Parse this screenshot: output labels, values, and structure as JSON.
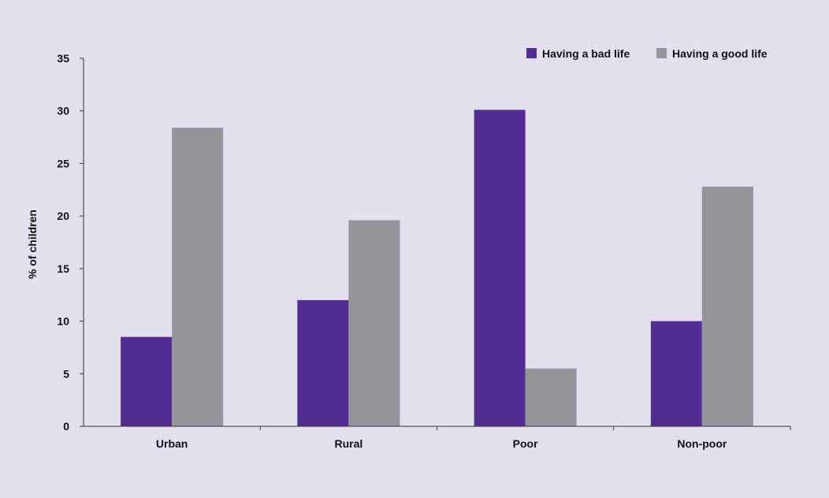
{
  "chart_data": {
    "type": "bar",
    "categories": [
      "Urban",
      "Rural",
      "Poor",
      "Non-poor"
    ],
    "series": [
      {
        "name": "Having a bad life",
        "color": "#512d91",
        "values": [
          8.5,
          12.0,
          30.1,
          10.0
        ]
      },
      {
        "name": "Having a good life",
        "color": "#939598",
        "values": [
          28.4,
          19.6,
          5.5,
          22.8
        ]
      }
    ],
    "title": "",
    "xlabel": "",
    "ylabel": "% of children",
    "ylim": [
      0,
      35
    ],
    "yticks": [
      0,
      5,
      10,
      15,
      20,
      25,
      30,
      35
    ],
    "grid": false,
    "legend_position": "top-right",
    "background": "#e4dfee"
  }
}
